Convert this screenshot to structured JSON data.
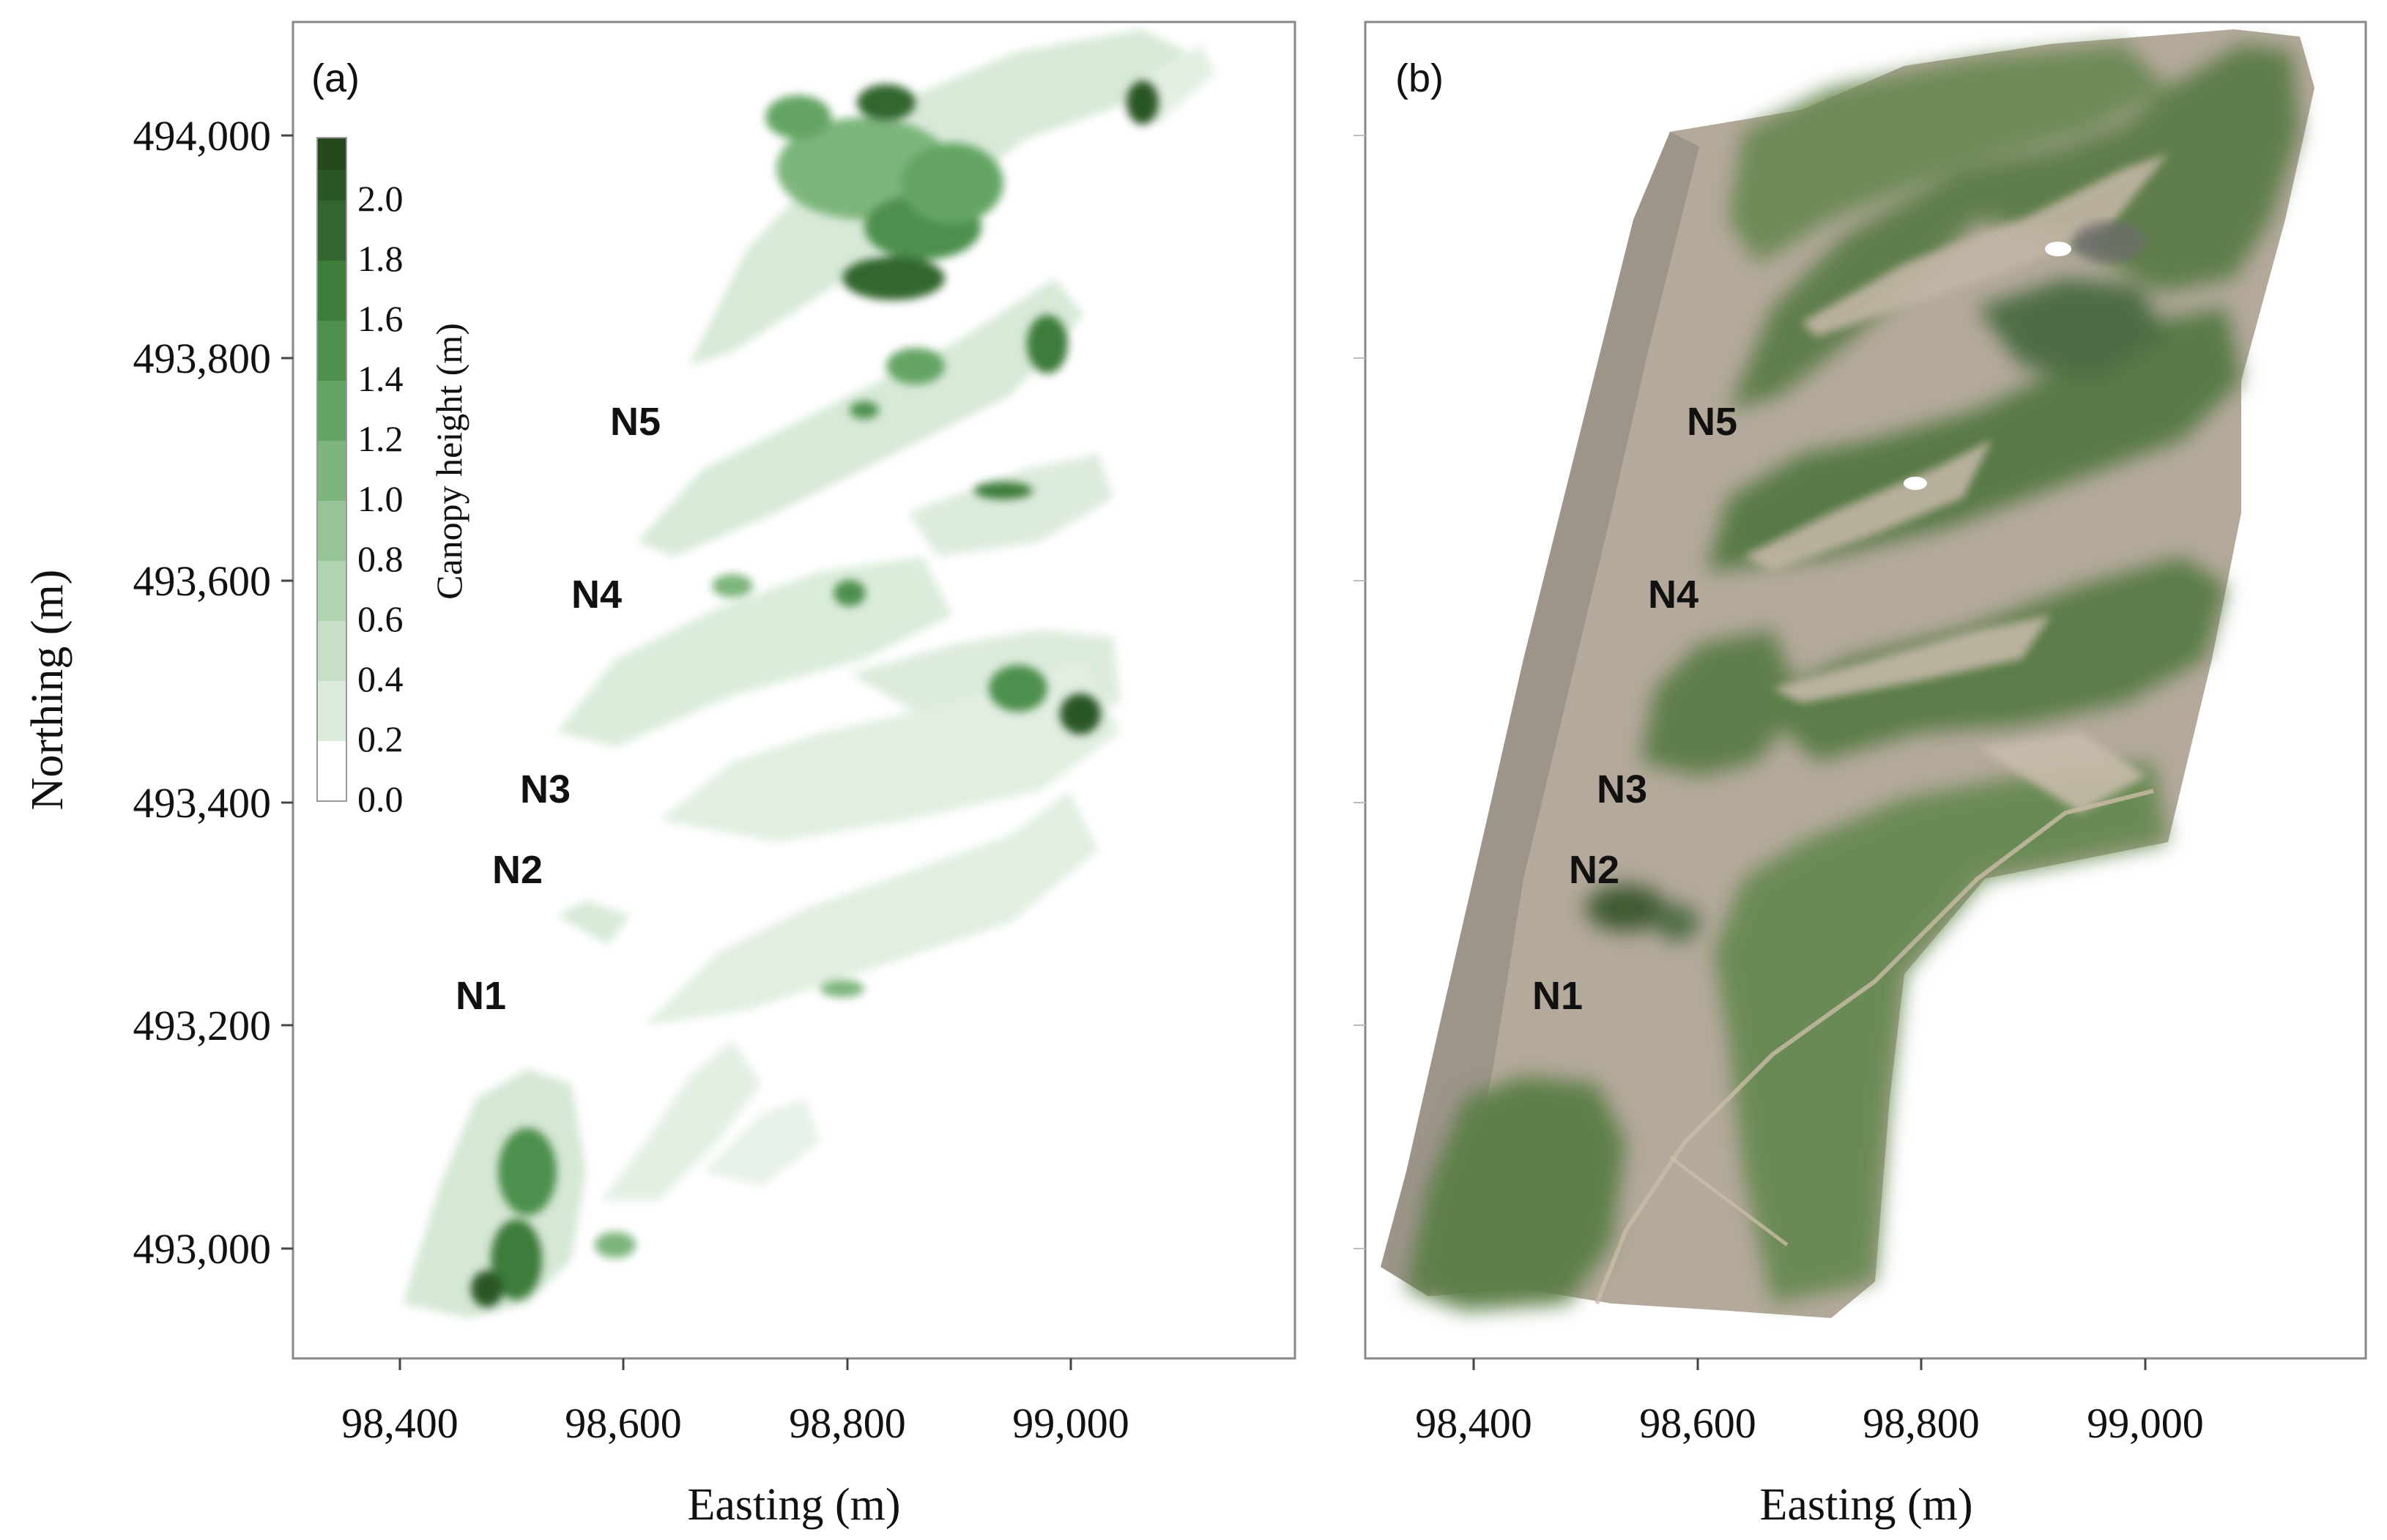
{
  "panels": [
    {
      "id": "a",
      "label": "(a)",
      "xlabel": "Easting (m)",
      "ylabel": "Northing (m)",
      "xticks": [
        "98,400",
        "98,600",
        "98,800",
        "99,000"
      ],
      "yticks": [
        "494,000",
        "493,800",
        "493,600",
        "493,400",
        "493,200",
        "493,000"
      ],
      "sites": [
        "N5",
        "N4",
        "N3",
        "N2",
        "N1"
      ]
    },
    {
      "id": "b",
      "label": "(b)",
      "xlabel": "Easting (m)",
      "xticks": [
        "98,400",
        "98,600",
        "98,800",
        "99,000"
      ],
      "sites": [
        "N5",
        "N4",
        "N3",
        "N2",
        "N1"
      ]
    }
  ],
  "colorbar": {
    "label": "Canopy height (m)",
    "ticks": [
      "2.0",
      "1.8",
      "1.6",
      "1.4",
      "1.2",
      "1.0",
      "0.8",
      "0.6",
      "0.4",
      "0.2",
      "0.0"
    ],
    "colors": [
      "#ffffff",
      "#dbeadb",
      "#c6dfc6",
      "#b0d3b0",
      "#96c496",
      "#7db57d",
      "#64a464",
      "#4e904e",
      "#3e7c3b",
      "#33662e",
      "#2b5625",
      "#25481d"
    ]
  },
  "palette": {
    "canopy_light": "#dbeadb",
    "canopy_mid": "#7db57d",
    "canopy_dark": "#2f5f2a",
    "sand": "#b9ada0",
    "beach": "#a8a091",
    "vegetation": "#5f7e4c",
    "vegetation_dark": "#3f5a33"
  }
}
